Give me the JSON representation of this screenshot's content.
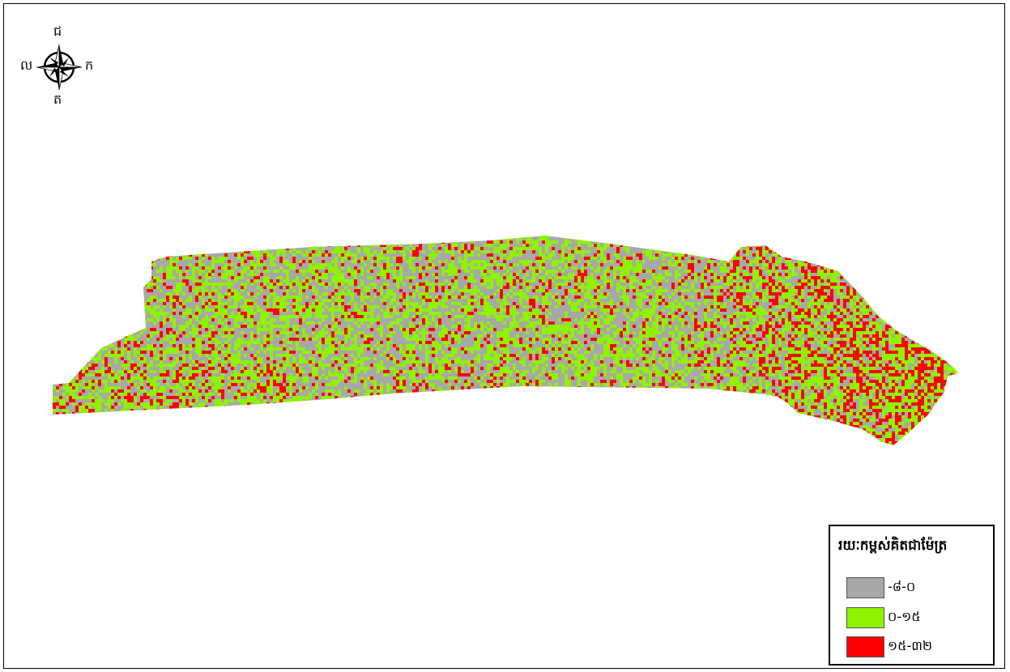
{
  "map": {
    "title_fragment": "",
    "colors": {
      "gray": "#a8a8a8",
      "green": "#8ef200",
      "red": "#ff0000",
      "border": "#000000"
    }
  },
  "compass": {
    "north": "ជ",
    "south": "ត",
    "east": "ក",
    "west": "ល"
  },
  "legend": {
    "title": "រយៈកម្ពស់គិតជាម៉ែត្រ",
    "items": [
      {
        "label": "-៨-០",
        "color": "#a8a8a8"
      },
      {
        "label": "០-១៥",
        "color": "#8ef200"
      },
      {
        "label": "១៥-៣២",
        "color": "#ff0000"
      }
    ]
  }
}
